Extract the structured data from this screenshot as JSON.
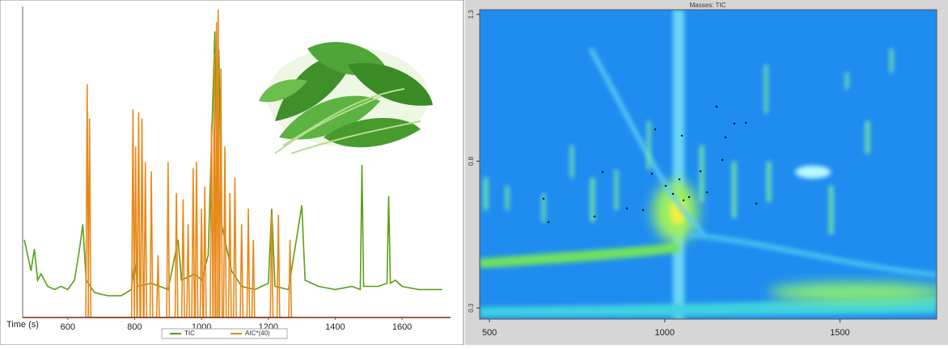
{
  "chart_data": [
    {
      "type": "line",
      "x_label": "Time (s)",
      "xlim": [
        465,
        1745
      ],
      "xticks": [
        600,
        800,
        1000,
        1200,
        1400,
        1600
      ],
      "ylim": [
        0,
        100
      ],
      "series": [
        {
          "name": "TIC",
          "color": "#5a9e1a",
          "x": [
            470,
            480,
            490,
            500,
            510,
            520,
            540,
            560,
            580,
            600,
            620,
            635,
            645,
            655,
            680,
            720,
            760,
            790,
            800,
            810,
            850,
            900,
            930,
            940,
            980,
            1000,
            1020,
            1040,
            1046,
            1052,
            1060,
            1070,
            1090,
            1120,
            1160,
            1200,
            1210,
            1220,
            1260,
            1300,
            1310,
            1350,
            1400,
            1450,
            1475,
            1480,
            1485,
            1530,
            1555,
            1560,
            1565,
            1580,
            1600,
            1650,
            1700,
            1720
          ],
          "values": [
            25,
            20,
            15,
            22,
            12,
            14,
            10,
            9,
            10,
            9,
            12,
            22,
            30,
            12,
            8,
            7,
            7,
            9,
            18,
            10,
            11,
            9,
            25,
            12,
            14,
            12,
            20,
            92,
            40,
            86,
            30,
            25,
            15,
            10,
            9,
            11,
            35,
            10,
            9,
            36,
            12,
            10,
            9,
            10,
            9,
            49,
            10,
            10,
            11,
            39,
            11,
            12,
            10,
            9,
            9,
            9
          ]
        },
        {
          "name": "AIC*(40)",
          "color": "#e8891a",
          "x": [
            654,
            658,
            662,
            661,
            665,
            669,
            791,
            795,
            799,
            799,
            803,
            807,
            808,
            812,
            816,
            818,
            822,
            826,
            828,
            832,
            836,
            846,
            850,
            854,
            866,
            870,
            874,
            896,
            900,
            904,
            921,
            925,
            929,
            941,
            945,
            949,
            956,
            960,
            964,
            971,
            975,
            979,
            981,
            985,
            989,
            996,
            1000,
            1004,
            1006,
            1010,
            1014,
            1026,
            1030,
            1034,
            1035,
            1038,
            1041,
            1042,
            1045,
            1048,
            1047,
            1050,
            1053,
            1054,
            1058,
            1062,
            1066,
            1070,
            1074,
            1081,
            1085,
            1089,
            1096,
            1100,
            1104,
            1116,
            1120,
            1124,
            1136,
            1140,
            1144,
            1151,
            1155,
            1159,
            1206,
            1210,
            1214,
            1226,
            1230,
            1234,
            1261,
            1265,
            1269
          ],
          "values": [
            0,
            75,
            0,
            0,
            64,
            0,
            0,
            67,
            0,
            0,
            55,
            0,
            0,
            66,
            0,
            0,
            64,
            0,
            0,
            50,
            0,
            0,
            47,
            0,
            0,
            20,
            0,
            0,
            50,
            0,
            0,
            40,
            0,
            0,
            38,
            0,
            0,
            30,
            0,
            0,
            48,
            0,
            0,
            50,
            0,
            0,
            35,
            0,
            0,
            42,
            0,
            0,
            62,
            0,
            0,
            85,
            0,
            0,
            95,
            0,
            0,
            99,
            0,
            0,
            80,
            0,
            0,
            55,
            0,
            0,
            40,
            0,
            0,
            45,
            0,
            0,
            30,
            0,
            0,
            35,
            0,
            0,
            25,
            0,
            0,
            33,
            0,
            0,
            33,
            0,
            0,
            25,
            0
          ]
        }
      ]
    },
    {
      "type": "heatmap",
      "title": "Masses: TIC",
      "xlim": [
        472,
        1776
      ],
      "xticks": [
        500,
        1000,
        1500
      ],
      "ylim": [
        0.262,
        1.316
      ],
      "yticks": [
        0.3,
        0.8,
        1.3
      ]
    }
  ]
}
